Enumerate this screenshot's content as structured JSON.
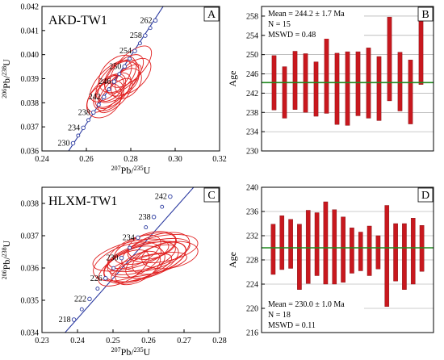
{
  "chart_data": [
    {
      "type": "scatter",
      "panel": "A",
      "title": "AKD-TW1",
      "xlabel": "207Pb/235U",
      "ylabel": "206Pb/238U",
      "xlim": [
        0.24,
        0.32
      ],
      "ylim": [
        0.036,
        0.042
      ],
      "xticks": [
        0.24,
        0.26,
        0.28,
        0.3,
        0.32
      ],
      "yticks": [
        0.036,
        0.037,
        0.038,
        0.039,
        0.04,
        0.041,
        0.042
      ],
      "concordia": {
        "line": [
          [
            0.252,
            0.036
          ],
          [
            0.296,
            0.0422
          ]
        ],
        "markers": [
          {
            "age": "230",
            "x": 0.254,
            "y": 0.03632
          },
          {
            "age": "234",
            "x": 0.2586,
            "y": 0.03696
          },
          {
            "age": "238",
            "x": 0.2632,
            "y": 0.0376
          },
          {
            "age": "242",
            "x": 0.2679,
            "y": 0.03824
          },
          {
            "age": "246",
            "x": 0.2725,
            "y": 0.03888
          },
          {
            "age": "250",
            "x": 0.2772,
            "y": 0.03951
          },
          {
            "age": "254",
            "x": 0.2818,
            "y": 0.04015
          },
          {
            "age": "258",
            "x": 0.2865,
            "y": 0.04079
          },
          {
            "age": "262",
            "x": 0.2911,
            "y": 0.04142
          }
        ],
        "labeled": [
          "230",
          "234",
          "238",
          "242",
          "246",
          "250",
          "254",
          "258",
          "262"
        ]
      },
      "ellipses": [
        {
          "x": 0.272,
          "y": 0.0385,
          "rx": 0.01,
          "ry": 0.0005,
          "angle": 45
        },
        {
          "x": 0.274,
          "y": 0.0389,
          "rx": 0.012,
          "ry": 0.0006,
          "angle": 45
        },
        {
          "x": 0.27,
          "y": 0.0383,
          "rx": 0.008,
          "ry": 0.0005,
          "angle": 45
        },
        {
          "x": 0.277,
          "y": 0.0392,
          "rx": 0.011,
          "ry": 0.0005,
          "angle": 45
        },
        {
          "x": 0.268,
          "y": 0.0381,
          "rx": 0.009,
          "ry": 0.0006,
          "angle": 45
        },
        {
          "x": 0.275,
          "y": 0.0387,
          "rx": 0.013,
          "ry": 0.0004,
          "angle": 45
        },
        {
          "x": 0.28,
          "y": 0.0395,
          "rx": 0.012,
          "ry": 0.0005,
          "angle": 45
        },
        {
          "x": 0.271,
          "y": 0.0386,
          "rx": 0.007,
          "ry": 0.0004,
          "angle": 45
        },
        {
          "x": 0.273,
          "y": 0.0383,
          "rx": 0.01,
          "ry": 0.0004,
          "angle": 45
        },
        {
          "x": 0.276,
          "y": 0.039,
          "rx": 0.009,
          "ry": 0.0006,
          "angle": 45
        },
        {
          "x": 0.269,
          "y": 0.0384,
          "rx": 0.011,
          "ry": 0.0005,
          "angle": 45
        },
        {
          "x": 0.278,
          "y": 0.0388,
          "rx": 0.008,
          "ry": 0.0005,
          "angle": 45
        },
        {
          "x": 0.274,
          "y": 0.0392,
          "rx": 0.01,
          "ry": 0.0006,
          "angle": 45
        },
        {
          "x": 0.271,
          "y": 0.0389,
          "rx": 0.012,
          "ry": 0.0005,
          "angle": 45
        },
        {
          "x": 0.281,
          "y": 0.0391,
          "rx": 0.01,
          "ry": 0.0005,
          "angle": 45
        }
      ]
    },
    {
      "type": "bar",
      "panel": "B",
      "ylabel": "Age",
      "ylim": [
        230,
        260
      ],
      "yticks": [
        230,
        234,
        238,
        242,
        246,
        250,
        254,
        258
      ],
      "mean": 244.2,
      "text": [
        "Mean = 244.2 ± 1.7 Ma",
        "N = 15",
        "MSWD = 0.48"
      ],
      "series": [
        {
          "values": [
            [
              238.5,
              249.8
            ],
            [
              236.8,
              247.5
            ],
            [
              238.6,
              250.7
            ],
            [
              238.0,
              250.2
            ],
            [
              237.2,
              248.5
            ],
            [
              237.8,
              254.7
            ],
            [
              235.5,
              250.3
            ],
            [
              235.3,
              250.6
            ],
            [
              237.3,
              250.6
            ],
            [
              236.8,
              251.4
            ],
            [
              236.3,
              249.6
            ],
            [
              240.4,
              257.8
            ],
            [
              238.3,
              250.5
            ],
            [
              235.6,
              248.9
            ],
            [
              243.8,
              257.8
            ]
          ]
        }
      ]
    },
    {
      "type": "scatter",
      "panel": "C",
      "title": "HLXM-TW1",
      "xlabel": "207Pb/235U",
      "ylabel": "206Pb/238U",
      "xlim": [
        0.23,
        0.28
      ],
      "ylim": [
        0.034,
        0.0385
      ],
      "xticks": [
        0.23,
        0.24,
        0.25,
        0.26,
        0.27,
        0.28
      ],
      "yticks": [
        0.034,
        0.035,
        0.036,
        0.037,
        0.038
      ],
      "concordia": {
        "line": [
          [
            0.2365,
            0.034
          ],
          [
            0.2735,
            0.0386
          ]
        ],
        "markers": [
          {
            "age": "218",
            "x": 0.239,
            "y": 0.0344
          },
          {
            "age": "222",
            "x": 0.2434,
            "y": 0.03504
          },
          {
            "age": "226",
            "x": 0.2479,
            "y": 0.03568
          },
          {
            "age": "230",
            "x": 0.2524,
            "y": 0.03631
          },
          {
            "age": "234",
            "x": 0.257,
            "y": 0.03694
          },
          {
            "age": "238",
            "x": 0.2615,
            "y": 0.03758
          },
          {
            "age": "242",
            "x": 0.2661,
            "y": 0.03821
          }
        ],
        "labeled": [
          "218",
          "222",
          "226",
          "230",
          "234",
          "238",
          "242"
        ]
      },
      "ellipses": [
        {
          "x": 0.258,
          "y": 0.0363,
          "rx": 0.01,
          "ry": 0.0004,
          "angle": 18
        },
        {
          "x": 0.26,
          "y": 0.0364,
          "rx": 0.012,
          "ry": 0.0004,
          "angle": 15
        },
        {
          "x": 0.256,
          "y": 0.0361,
          "rx": 0.009,
          "ry": 0.0005,
          "angle": 20
        },
        {
          "x": 0.261,
          "y": 0.0362,
          "rx": 0.008,
          "ry": 0.0004,
          "angle": 25
        },
        {
          "x": 0.255,
          "y": 0.0364,
          "rx": 0.011,
          "ry": 0.0004,
          "angle": 15
        },
        {
          "x": 0.262,
          "y": 0.0365,
          "rx": 0.01,
          "ry": 0.0005,
          "angle": 20
        },
        {
          "x": 0.257,
          "y": 0.036,
          "rx": 0.007,
          "ry": 0.0004,
          "angle": 30
        },
        {
          "x": 0.259,
          "y": 0.0366,
          "rx": 0.009,
          "ry": 0.0004,
          "angle": 18
        },
        {
          "x": 0.263,
          "y": 0.0363,
          "rx": 0.008,
          "ry": 0.0004,
          "angle": 22
        },
        {
          "x": 0.254,
          "y": 0.0362,
          "rx": 0.01,
          "ry": 0.0005,
          "angle": 20
        },
        {
          "x": 0.26,
          "y": 0.0361,
          "rx": 0.011,
          "ry": 0.0003,
          "angle": 12
        },
        {
          "x": 0.264,
          "y": 0.0366,
          "rx": 0.01,
          "ry": 0.0004,
          "angle": 10
        },
        {
          "x": 0.256,
          "y": 0.0365,
          "rx": 0.008,
          "ry": 0.0004,
          "angle": 25
        },
        {
          "x": 0.258,
          "y": 0.036,
          "rx": 0.009,
          "ry": 0.0003,
          "angle": 20
        },
        {
          "x": 0.261,
          "y": 0.0367,
          "rx": 0.007,
          "ry": 0.0004,
          "angle": 15
        },
        {
          "x": 0.253,
          "y": 0.036,
          "rx": 0.008,
          "ry": 0.0004,
          "angle": 30
        },
        {
          "x": 0.266,
          "y": 0.0364,
          "rx": 0.008,
          "ry": 0.0004,
          "angle": 10
        },
        {
          "x": 0.259,
          "y": 0.0362,
          "rx": 0.012,
          "ry": 0.0005,
          "angle": 18
        }
      ]
    },
    {
      "type": "bar",
      "panel": "D",
      "ylabel": "Age",
      "ylim": [
        216,
        240
      ],
      "yticks": [
        216,
        220,
        224,
        228,
        232,
        236,
        240
      ],
      "mean": 230.0,
      "text": [
        "Mean = 230.0 ± 1.0 Ma",
        "N = 18",
        "MSWD = 0.11"
      ],
      "series": [
        {
          "values": [
            [
              225.6,
              233.9
            ],
            [
              226.4,
              235.3
            ],
            [
              226.6,
              234.7
            ],
            [
              223.1,
              233.9
            ],
            [
              224.1,
              236.2
            ],
            [
              225.4,
              235.8
            ],
            [
              224.0,
              237.6
            ],
            [
              224.0,
              236.3
            ],
            [
              224.3,
              235.1
            ],
            [
              225.8,
              233.3
            ],
            [
              226.2,
              232.6
            ],
            [
              225.4,
              233.6
            ],
            [
              226.5,
              232.0
            ],
            [
              220.3,
              237.0
            ],
            [
              224.5,
              234.0
            ],
            [
              223.1,
              234.0
            ],
            [
              224.0,
              234.9
            ],
            [
              226.1,
              233.7
            ]
          ]
        }
      ]
    }
  ]
}
